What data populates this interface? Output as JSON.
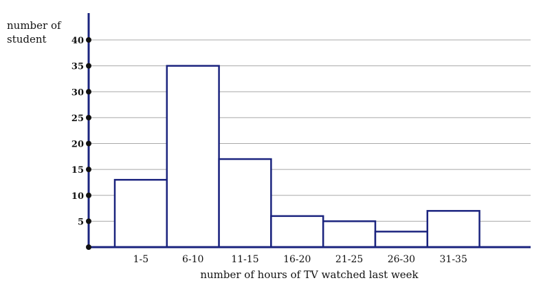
{
  "chart_data": {
    "type": "bar",
    "title": "",
    "ylabel_line1": "number of",
    "ylabel_line2": "student",
    "xlabel": "number of hours of TV watched last week",
    "categories": [
      "1-5",
      "6-10",
      "11-15",
      "16-20",
      "21-25",
      "26-30",
      "31-35"
    ],
    "values": [
      13,
      35,
      17,
      6,
      5,
      3,
      7
    ],
    "yticks": [
      5,
      10,
      15,
      20,
      25,
      30,
      35,
      40
    ],
    "ylim": [
      0,
      40
    ],
    "grid": true,
    "bar_fill": "#ffffff",
    "bar_stroke": "#1a237e",
    "axis_color": "#1a237e",
    "grid_color": "#a8a8a8"
  }
}
